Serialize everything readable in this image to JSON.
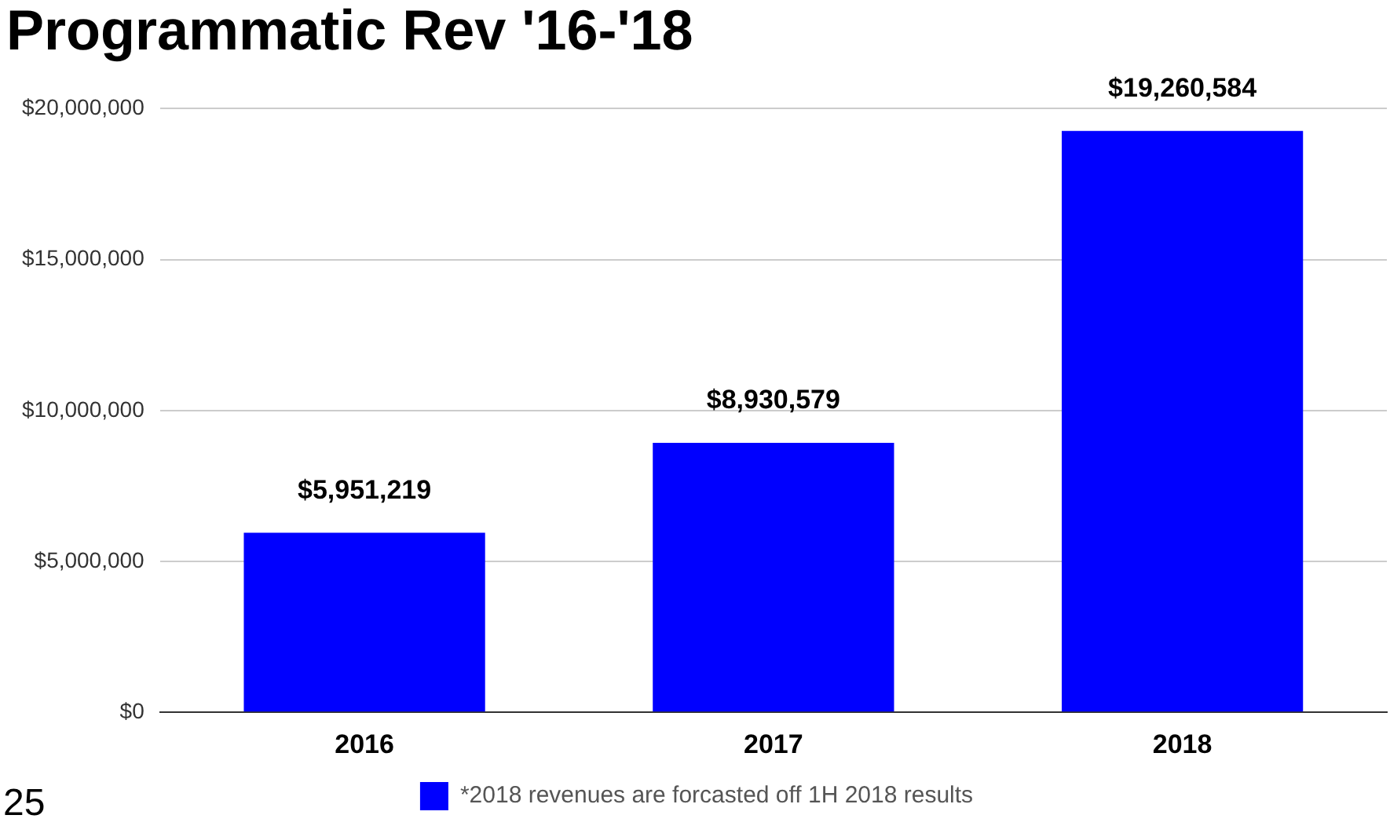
{
  "chart_data": {
    "type": "bar",
    "title": "Programmatic Rev '16-'18",
    "categories": [
      "2016",
      "2017",
      "2018"
    ],
    "series": [
      {
        "name": "*2018 revenues are forcasted off 1H 2018 results",
        "color": "#0000ff",
        "values": [
          5951219,
          8930579,
          19260584
        ],
        "value_labels": [
          "$5,951,219",
          "$8,930,579",
          "$19,260,584"
        ]
      }
    ],
    "ylim": [
      0,
      20000000
    ],
    "yticks": [
      {
        "value": 0,
        "label": "$0"
      },
      {
        "value": 5000000,
        "label": "$5,000,000"
      },
      {
        "value": 10000000,
        "label": "$10,000,000"
      },
      {
        "value": 15000000,
        "label": "$15,000,000"
      },
      {
        "value": 20000000,
        "label": "$20,000,000"
      }
    ],
    "grid": "y",
    "legend": "bottom",
    "annotations": [
      "25"
    ]
  }
}
